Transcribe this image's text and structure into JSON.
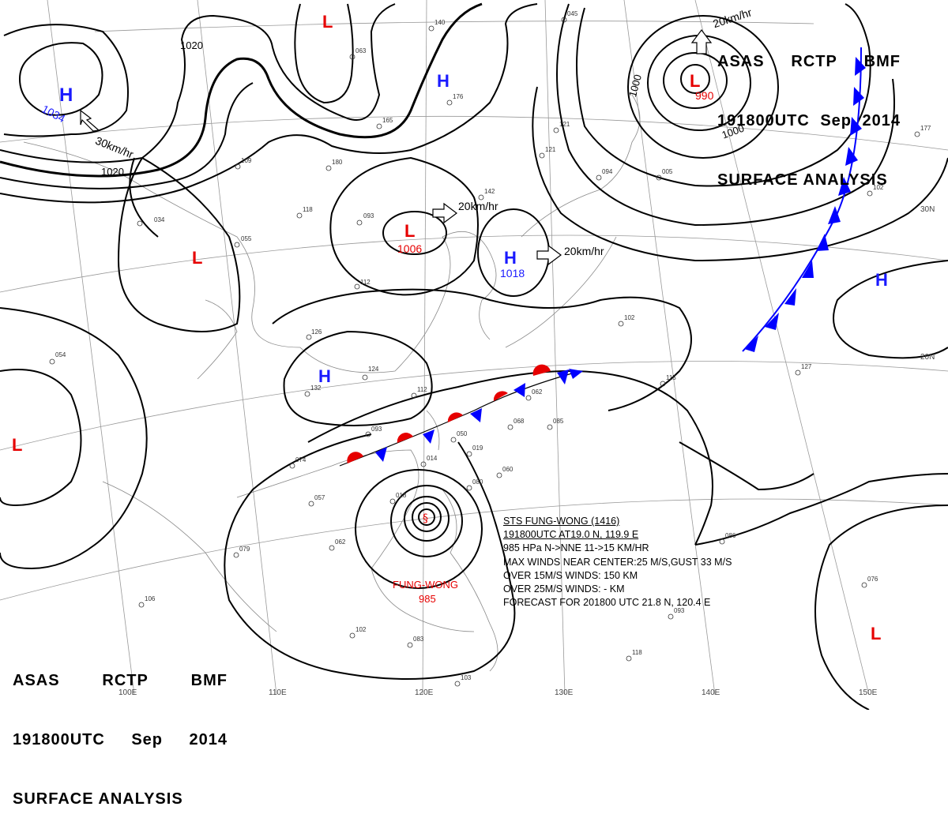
{
  "header": {
    "agency": "ASAS",
    "code": "RCTP",
    "office": "BMF",
    "datetime": "191800UTC",
    "month": "Sep",
    "year": "2014",
    "title": "SURFACE ANALYSIS"
  },
  "pressure_centers": [
    {
      "type": "H",
      "value": "1034"
    },
    {
      "type": "L",
      "value": ""
    },
    {
      "type": "H",
      "value": ""
    },
    {
      "type": "L",
      "value": "990"
    },
    {
      "type": "L",
      "value": "1006"
    },
    {
      "type": "H",
      "value": "1018"
    },
    {
      "type": "L",
      "value": ""
    },
    {
      "type": "H",
      "value": ""
    },
    {
      "type": "H",
      "value": ""
    },
    {
      "type": "L",
      "value": ""
    },
    {
      "type": "L",
      "value": ""
    }
  ],
  "isobar_labels": [
    "1020",
    "1020",
    "1000",
    "1000"
  ],
  "motion_labels": [
    "30km/hr",
    "20km/hr",
    "20km/hr",
    "20km/hr"
  ],
  "latitude_labels": [
    "30N",
    "20N"
  ],
  "longitude_labels": [
    "100E",
    "110E",
    "120E",
    "130E",
    "140E",
    "150E"
  ],
  "typhoon": {
    "name": "FUNG-WONG",
    "pressure": "985",
    "bulletin": {
      "line1": "STS FUNG-WONG (1416)",
      "line2": "191800UTC AT19.0 N, 119.9 E",
      "line3": "985 HPa N->NNE 11->15 KM/HR",
      "line4": "MAX WINDS NEAR CENTER:25 M/S,GUST 33 M/S",
      "line5": "OVER 15M/S WINDS: 150 KM",
      "line6": "OVER 25M/S WINDS: - KM",
      "line7": "FORECAST FOR 201800 UTC 21.8 N, 120.4 E"
    }
  },
  "station_labels": [
    "054",
    "034",
    "055",
    "093",
    "112",
    "126",
    "124",
    "132",
    "112",
    "093",
    "074",
    "057",
    "079",
    "062",
    "106",
    "102",
    "083",
    "103",
    "118",
    "093",
    "076",
    "086",
    "115",
    "127",
    "102",
    "062",
    "085",
    "068",
    "050",
    "060",
    "080",
    "014",
    "018",
    "019",
    "142",
    "176",
    "165",
    "109",
    "180",
    "118",
    "121",
    "121",
    "094",
    "005",
    "102",
    "063",
    "140",
    "045",
    "177"
  ],
  "colors": {
    "high": "#1a1aff",
    "low": "#e60000",
    "warm_front": "#e60000",
    "cold_front": "#0000ff",
    "isobar": "#000000",
    "grid": "#999999"
  }
}
